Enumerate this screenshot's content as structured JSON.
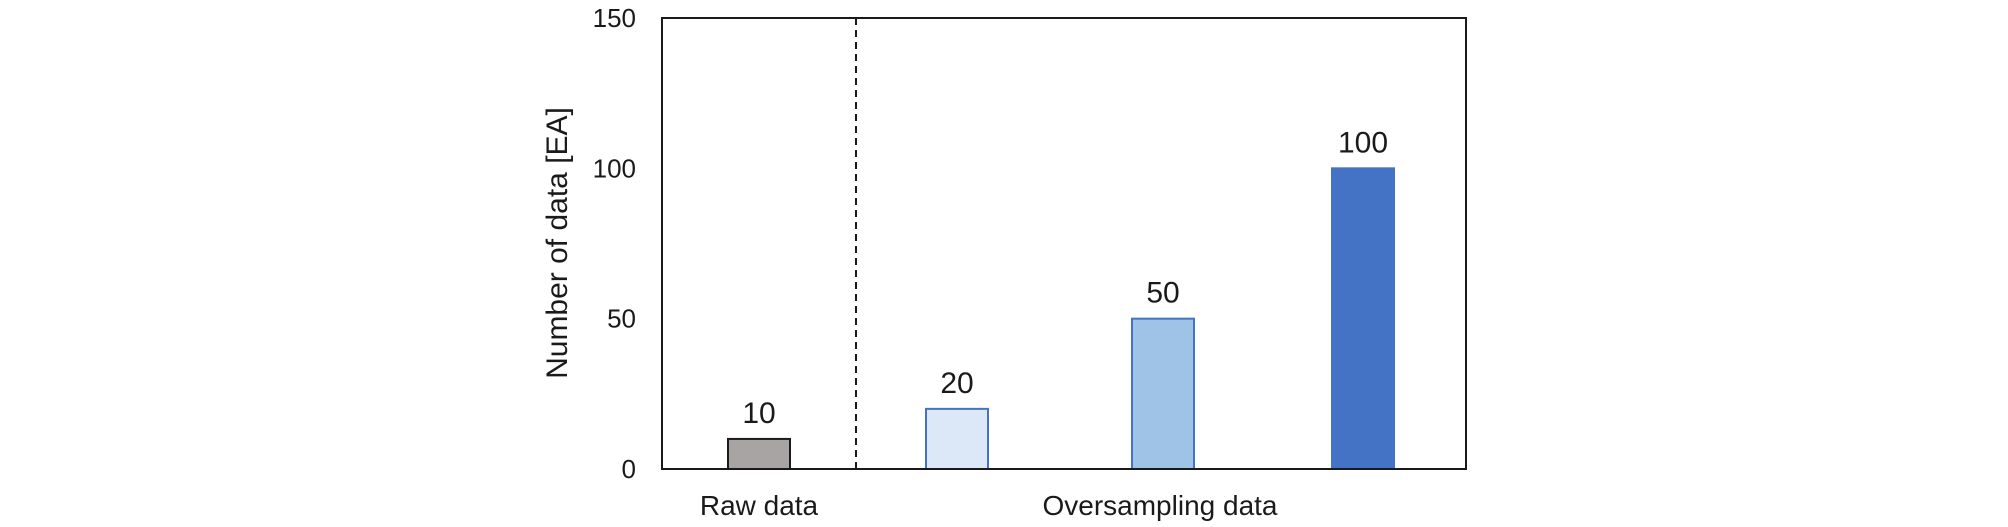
{
  "chart_data": {
    "type": "bar",
    "ylabel": "Number of data [EA]",
    "ylim": [
      0,
      150
    ],
    "yticks": [
      0,
      50,
      100,
      150
    ],
    "grid": false,
    "groups": [
      {
        "label": "Raw data"
      },
      {
        "label": "Oversampling data"
      }
    ],
    "bars": [
      {
        "value": 10,
        "group": 0,
        "color": "#a8a4a4",
        "stroke": "#1a1a1a"
      },
      {
        "value": 20,
        "group": 1,
        "color": "#dce8f7",
        "stroke": "#4472c4"
      },
      {
        "value": 50,
        "group": 1,
        "color": "#9ec3e6",
        "stroke": "#4472c4"
      },
      {
        "value": 100,
        "group": 1,
        "color": "#4472c4",
        "stroke": "#4472c4"
      }
    ],
    "separator": "dashed"
  }
}
